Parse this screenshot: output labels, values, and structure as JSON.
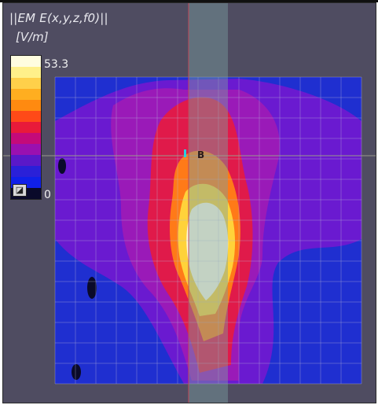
{
  "field_title": "||EM E(x,y,z,f0)||",
  "unit_label": "[V/m]",
  "colorbar": {
    "max_label": "53.3",
    "min_label": "0",
    "colors": [
      "#fffde0",
      "#fff08a",
      "#ffd04a",
      "#ffae20",
      "#ff8a10",
      "#ff4a18",
      "#e81a3a",
      "#c40a7a",
      "#9a10b0",
      "#5a18c8",
      "#2a20d8",
      "#1020e8",
      "#0a0a2a"
    ],
    "toggle_icon": "scale-toggle-icon"
  },
  "markers": {
    "probe_label": "B"
  },
  "colors": {
    "background": "#4f4c61",
    "field_low": "#1f2fd0",
    "field_mid": "#8a1ec8",
    "field_high": "#ffffe8",
    "slice_band": "#6a8a8a"
  }
}
